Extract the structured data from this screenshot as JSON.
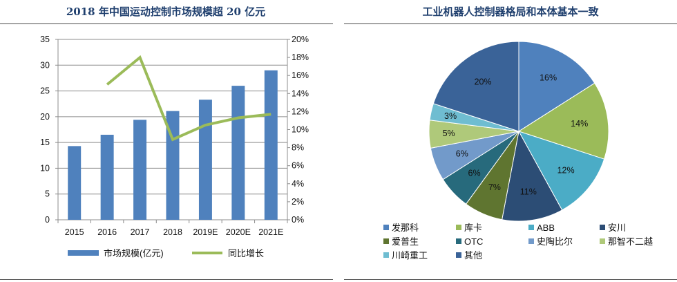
{
  "chart_data": [
    {
      "type": "bar",
      "title": "2018 年中国运动控制市场规模超 20 亿元",
      "categories": [
        "2015",
        "2016",
        "2017",
        "2018",
        "2019E",
        "2020E",
        "2021E"
      ],
      "series": [
        {
          "name": "市场规模(亿元)",
          "type": "bar",
          "axis": "left",
          "color": "#4F81BD",
          "values": [
            14.3,
            16.5,
            19.4,
            21.1,
            23.3,
            26.0,
            29.0
          ]
        },
        {
          "name": "同比增长",
          "type": "line",
          "axis": "right",
          "color": "#9BBB59",
          "values": [
            null,
            15.0,
            18.0,
            8.9,
            10.5,
            11.3,
            11.7
          ]
        }
      ],
      "ylim_left": [
        0,
        35
      ],
      "yticks_left": [
        "0",
        "5",
        "10",
        "15",
        "20",
        "25",
        "30",
        "35"
      ],
      "ylim_right": [
        0,
        20
      ],
      "yticks_right": [
        "0%",
        "2%",
        "4%",
        "6%",
        "8%",
        "10%",
        "12%",
        "14%",
        "16%",
        "18%",
        "20%"
      ],
      "grid": true,
      "legend_position": "bottom"
    },
    {
      "type": "pie",
      "title": "工业机器人控制器格局和本体基本一致",
      "labels": [
        "发那科",
        "库卡",
        "ABB",
        "安川",
        "爱普生",
        "OTC",
        "史陶比尔",
        "那智不二越",
        "川崎重工",
        "其他"
      ],
      "values": [
        16,
        14,
        12,
        11,
        7,
        6,
        6,
        5,
        3,
        20
      ],
      "data_labels": [
        "16%",
        "14%",
        "12%",
        "11%",
        "7%",
        "6%",
        "6%",
        "5%",
        "3%",
        "20%"
      ],
      "colors": [
        "#4F81BD",
        "#9BBB59",
        "#4BACC6",
        "#2C4D75",
        "#5F7530",
        "#276A7C",
        "#729ACA",
        "#AFC97A",
        "#6FBDD1",
        "#3A6398"
      ],
      "legend_position": "bottom"
    }
  ]
}
